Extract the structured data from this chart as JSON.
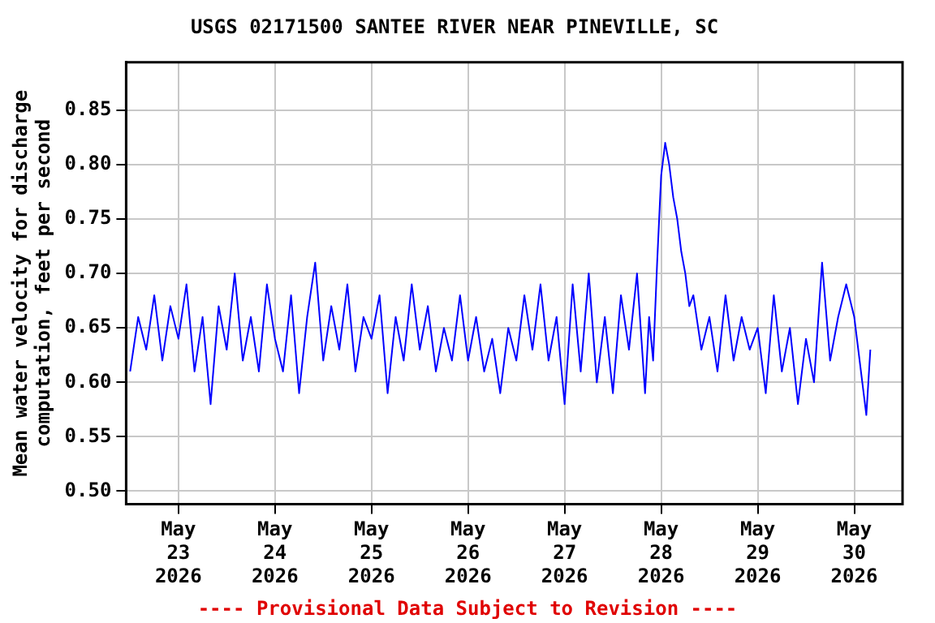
{
  "chart_data": {
    "type": "line",
    "title": "USGS 02171500 SANTEE RIVER NEAR PINEVILLE, SC",
    "ylabel": "Mean water velocity for discharge computation, feet per second",
    "annotations": [
      "---- Provisional Data Subject to Revision ----"
    ],
    "grid": true,
    "legend": false,
    "marker": "none",
    "line_style": "solid",
    "xlim": [
      "2026-05-22T11:00",
      "2026-05-30T12:00"
    ],
    "xticks": [
      {
        "value": "2026-05-23",
        "label": "May 23 2026"
      },
      {
        "value": "2026-05-24",
        "label": "May 24 2026"
      },
      {
        "value": "2026-05-25",
        "label": "May 25 2026"
      },
      {
        "value": "2026-05-26",
        "label": "May 26 2026"
      },
      {
        "value": "2026-05-27",
        "label": "May 27 2026"
      },
      {
        "value": "2026-05-28",
        "label": "May 28 2026"
      },
      {
        "value": "2026-05-29",
        "label": "May 29 2026"
      },
      {
        "value": "2026-05-30",
        "label": "May 30 2026"
      }
    ],
    "ylim": [
      0.488,
      0.894
    ],
    "yticks": [
      {
        "value": 0.5,
        "label": "0.50"
      },
      {
        "value": 0.55,
        "label": "0.55"
      },
      {
        "value": 0.6,
        "label": "0.60"
      },
      {
        "value": 0.65,
        "label": "0.65"
      },
      {
        "value": 0.7,
        "label": "0.70"
      },
      {
        "value": 0.75,
        "label": "0.75"
      },
      {
        "value": 0.8,
        "label": "0.80"
      },
      {
        "value": 0.85,
        "label": "0.85"
      }
    ],
    "x": [
      "2026-05-22T12:00",
      "2026-05-22T14:00",
      "2026-05-22T16:00",
      "2026-05-22T18:00",
      "2026-05-22T20:00",
      "2026-05-22T22:00",
      "2026-05-23T00:00",
      "2026-05-23T02:00",
      "2026-05-23T04:00",
      "2026-05-23T06:00",
      "2026-05-23T08:00",
      "2026-05-23T10:00",
      "2026-05-23T12:00",
      "2026-05-23T14:00",
      "2026-05-23T16:00",
      "2026-05-23T18:00",
      "2026-05-23T20:00",
      "2026-05-23T22:00",
      "2026-05-24T00:00",
      "2026-05-24T02:00",
      "2026-05-24T04:00",
      "2026-05-24T06:00",
      "2026-05-24T08:00",
      "2026-05-24T10:00",
      "2026-05-24T12:00",
      "2026-05-24T14:00",
      "2026-05-24T16:00",
      "2026-05-24T18:00",
      "2026-05-24T20:00",
      "2026-05-24T22:00",
      "2026-05-25T00:00",
      "2026-05-25T02:00",
      "2026-05-25T04:00",
      "2026-05-25T06:00",
      "2026-05-25T08:00",
      "2026-05-25T10:00",
      "2026-05-25T12:00",
      "2026-05-25T14:00",
      "2026-05-25T16:00",
      "2026-05-25T18:00",
      "2026-05-25T20:00",
      "2026-05-25T22:00",
      "2026-05-26T00:00",
      "2026-05-26T02:00",
      "2026-05-26T04:00",
      "2026-05-26T06:00",
      "2026-05-26T08:00",
      "2026-05-26T10:00",
      "2026-05-26T12:00",
      "2026-05-26T14:00",
      "2026-05-26T16:00",
      "2026-05-26T18:00",
      "2026-05-26T20:00",
      "2026-05-26T22:00",
      "2026-05-27T00:00",
      "2026-05-27T02:00",
      "2026-05-27T04:00",
      "2026-05-27T06:00",
      "2026-05-27T08:00",
      "2026-05-27T10:00",
      "2026-05-27T12:00",
      "2026-05-27T14:00",
      "2026-05-27T16:00",
      "2026-05-27T18:00",
      "2026-05-27T20:00",
      "2026-05-27T21:00",
      "2026-05-27T22:00",
      "2026-05-27T23:00",
      "2026-05-28T00:00",
      "2026-05-28T01:00",
      "2026-05-28T02:00",
      "2026-05-28T03:00",
      "2026-05-28T04:00",
      "2026-05-28T05:00",
      "2026-05-28T06:00",
      "2026-05-28T07:00",
      "2026-05-28T08:00",
      "2026-05-28T10:00",
      "2026-05-28T12:00",
      "2026-05-28T14:00",
      "2026-05-28T16:00",
      "2026-05-28T18:00",
      "2026-05-28T20:00",
      "2026-05-28T22:00",
      "2026-05-29T00:00",
      "2026-05-29T02:00",
      "2026-05-29T04:00",
      "2026-05-29T06:00",
      "2026-05-29T08:00",
      "2026-05-29T10:00",
      "2026-05-29T12:00",
      "2026-05-29T14:00",
      "2026-05-29T16:00",
      "2026-05-29T18:00",
      "2026-05-29T20:00",
      "2026-05-29T22:00",
      "2026-05-30T00:00",
      "2026-05-30T02:00",
      "2026-05-30T03:00",
      "2026-05-30T04:00"
    ],
    "series": [
      {
        "color": "#0000ff",
        "values": [
          0.61,
          0.66,
          0.63,
          0.68,
          0.62,
          0.67,
          0.64,
          0.69,
          0.61,
          0.66,
          0.58,
          0.67,
          0.63,
          0.7,
          0.62,
          0.66,
          0.61,
          0.69,
          0.64,
          0.61,
          0.68,
          0.59,
          0.66,
          0.71,
          0.62,
          0.67,
          0.63,
          0.69,
          0.61,
          0.66,
          0.64,
          0.68,
          0.59,
          0.66,
          0.62,
          0.69,
          0.63,
          0.67,
          0.61,
          0.65,
          0.62,
          0.68,
          0.62,
          0.66,
          0.61,
          0.64,
          0.59,
          0.65,
          0.62,
          0.68,
          0.63,
          0.69,
          0.62,
          0.66,
          0.58,
          0.69,
          0.61,
          0.7,
          0.6,
          0.66,
          0.59,
          0.68,
          0.63,
          0.7,
          0.59,
          0.66,
          0.62,
          0.71,
          0.79,
          0.82,
          0.8,
          0.77,
          0.75,
          0.72,
          0.7,
          0.67,
          0.68,
          0.63,
          0.66,
          0.61,
          0.68,
          0.62,
          0.66,
          0.63,
          0.65,
          0.59,
          0.68,
          0.61,
          0.65,
          0.58,
          0.64,
          0.6,
          0.71,
          0.62,
          0.66,
          0.69,
          0.66,
          0.6,
          0.57,
          0.63
        ]
      }
    ]
  }
}
